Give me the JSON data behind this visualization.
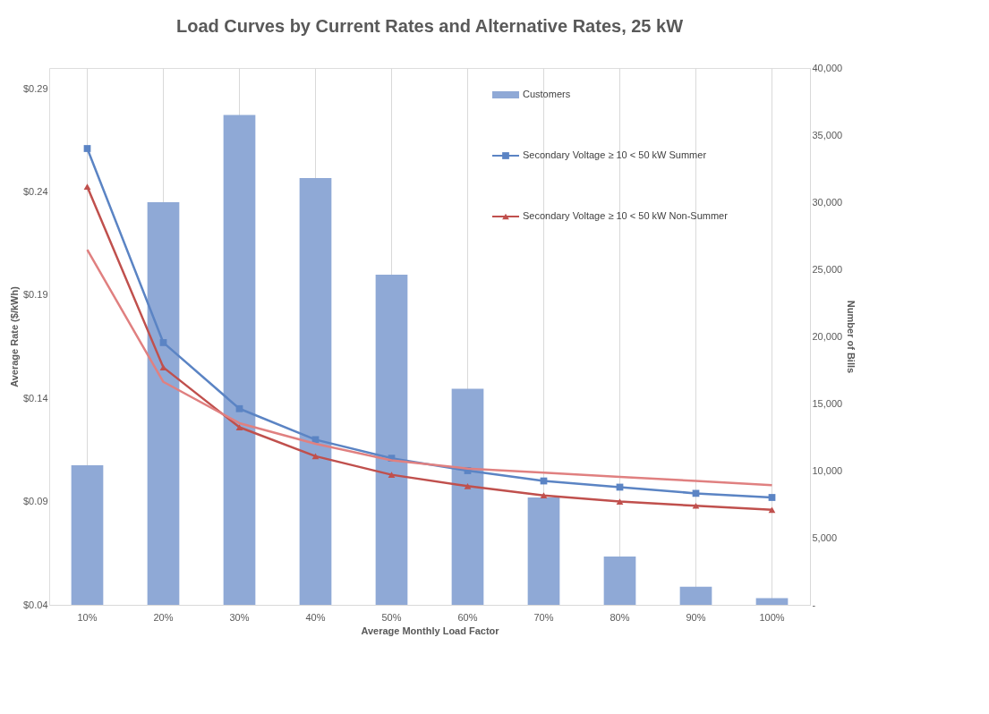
{
  "chart_data": {
    "type": "bar",
    "title": "Load Curves by Current Rates and Alternative Rates, 25 kW",
    "xlabel": "Average Monthly Load Factor",
    "ylabel": "Average Rate ($/kWh)",
    "y2label": "Number of Bills",
    "categories": [
      "10%",
      "20%",
      "30%",
      "40%",
      "50%",
      "60%",
      "70%",
      "80%",
      "90%",
      "100%"
    ],
    "series": [
      {
        "name": "Customers",
        "axis": "y2",
        "color": "#8fa9d6",
        "values": [
          10400,
          30000,
          36500,
          31800,
          24600,
          16100,
          8000,
          3600,
          1350,
          500
        ]
      },
      {
        "name": "Secondary Voltage ≥ 10 < 50 kW Summer",
        "type": "line",
        "marker": "square",
        "color": "#5b84c4",
        "values": [
          0.261,
          0.167,
          0.135,
          0.12,
          0.111,
          0.105,
          0.1,
          0.097,
          0.094,
          0.092
        ]
      },
      {
        "name": "Secondary Voltage ≥ 10 < 50 kW Non-Summer",
        "type": "line",
        "marker": "triangle",
        "color": "#c0504d",
        "values": [
          0.2425,
          0.155,
          0.126,
          0.112,
          0.103,
          0.0975,
          0.093,
          0.09,
          0.088,
          0.086
        ]
      },
      {
        "type": "line",
        "marker": "none",
        "color": "#e08080",
        "values": [
          0.212,
          0.148,
          0.128,
          0.118,
          0.11,
          0.106,
          0.104,
          0.102,
          0.1,
          0.098
        ]
      }
    ],
    "ylim": [
      0.04,
      0.3
    ],
    "yticks": [
      {
        "value": 0.04,
        "label": "$0.04"
      },
      {
        "value": 0.09,
        "label": "$0.09"
      },
      {
        "value": 0.14,
        "label": "$0.14"
      },
      {
        "value": 0.19,
        "label": "$0.19"
      },
      {
        "value": 0.24,
        "label": "$0.24"
      },
      {
        "value": 0.29,
        "label": "$0.29"
      }
    ],
    "y2lim": [
      0,
      40000
    ],
    "y2ticks": [
      {
        "value": 0,
        "label": "-"
      },
      {
        "value": 5000,
        "label": "5,000"
      },
      {
        "value": 10000,
        "label": "10,000"
      },
      {
        "value": 15000,
        "label": "15,000"
      },
      {
        "value": 20000,
        "label": "20,000"
      },
      {
        "value": 25000,
        "label": "25,000"
      },
      {
        "value": 30000,
        "label": "30,000"
      },
      {
        "value": 35000,
        "label": "35,000"
      },
      {
        "value": 40000,
        "label": "40,000"
      }
    ],
    "grid": "x",
    "legend": "top right"
  }
}
